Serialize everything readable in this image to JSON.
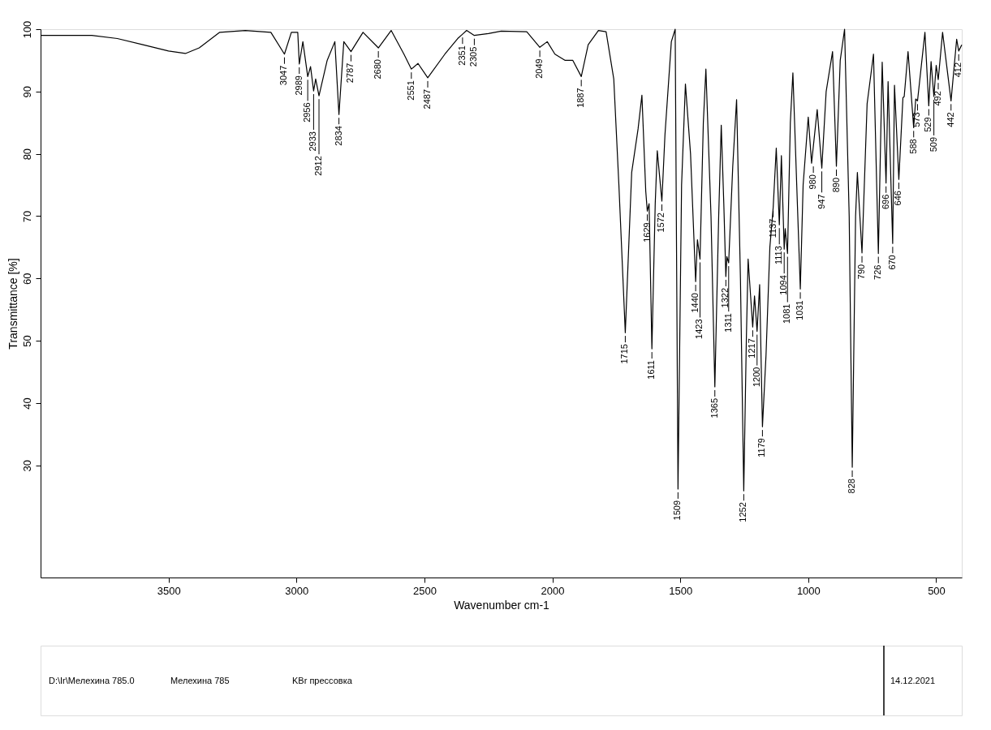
{
  "chart_data": {
    "type": "line",
    "xlabel": "Wavenumber cm-1",
    "ylabel": "Transmittance [%]",
    "xlim": [
      4000,
      400
    ],
    "xticks": [
      3500,
      3000,
      2500,
      2000,
      1500,
      1000,
      500
    ],
    "ylim": [
      12,
      100
    ],
    "yticks": [
      30,
      40,
      50,
      60,
      70,
      80,
      90,
      100
    ],
    "grid": false,
    "marker": "none",
    "line_style": "solid",
    "series": [
      {
        "color": "#000000",
        "x": [
          4000,
          3800,
          3700,
          3600,
          3500,
          3434,
          3380,
          3300,
          3200,
          3100,
          3047,
          3020,
          2995,
          2989,
          2975,
          2956,
          2945,
          2933,
          2925,
          2912,
          2880,
          2850,
          2834,
          2815,
          2787,
          2740,
          2680,
          2630,
          2580,
          2551,
          2525,
          2487,
          2420,
          2370,
          2351,
          2335,
          2305,
          2250,
          2200,
          2100,
          2049,
          2020,
          1990,
          1950,
          1920,
          1887,
          1860,
          1820,
          1790,
          1760,
          1740,
          1715,
          1690,
          1665,
          1650,
          1635,
          1629,
          1622,
          1611,
          1598,
          1590,
          1580,
          1572,
          1560,
          1535,
          1520,
          1509,
          1495,
          1480,
          1460,
          1440,
          1433,
          1423,
          1410,
          1400,
          1380,
          1365,
          1350,
          1340,
          1330,
          1322,
          1318,
          1311,
          1295,
          1280,
          1265,
          1252,
          1242,
          1235,
          1225,
          1217,
          1210,
          1200,
          1190,
          1179,
          1165,
          1150,
          1137,
          1125,
          1113,
          1105,
          1094,
          1090,
          1081,
          1070,
          1060,
          1045,
          1031,
          1020,
          1000,
          987,
          965,
          947,
          930,
          905,
          890,
          875,
          858,
          840,
          828,
          815,
          808,
          790,
          770,
          745,
          726,
          711,
          696,
          688,
          670,
          663,
          646,
          630,
          625,
          610,
          588,
          580,
          573,
          544,
          529,
          520,
          509,
          500,
          492,
          475,
          442,
          420,
          412,
          400
        ],
        "values": [
          99,
          99,
          98.5,
          97.5,
          96.5,
          96.1,
          97,
          99.5,
          99.8,
          99.5,
          96,
          99.5,
          99.5,
          94.4,
          98,
          92.4,
          94,
          90.1,
          92,
          89.3,
          95,
          98,
          86.3,
          98,
          96.4,
          99.5,
          97,
          99.8,
          96,
          93.6,
          94.5,
          92.2,
          96,
          98.5,
          99.2,
          99.8,
          99,
          99.3,
          99.7,
          99.6,
          97.1,
          98,
          96,
          95,
          95,
          92.4,
          97.5,
          99.8,
          99.6,
          92,
          75,
          51.3,
          77,
          84,
          89.4,
          74,
          70.8,
          72,
          48.7,
          72,
          80.5,
          76,
          72.4,
          83,
          98,
          100,
          26.2,
          75,
          91.2,
          80,
          59.5,
          66.2,
          63.1,
          85,
          93.6,
          70,
          42.6,
          70,
          84.6,
          72,
          60.3,
          63.5,
          62.5,
          78,
          88.7,
          60,
          25.9,
          50,
          63.1,
          57,
          52.2,
          57.2,
          51.5,
          59,
          36.2,
          47.7,
          65,
          71.4,
          80.9,
          68.6,
          79.7,
          64.7,
          68,
          64,
          85,
          93,
          75,
          58.3,
          75,
          85.9,
          78.5,
          87.1,
          77.7,
          90,
          96.4,
          78,
          95,
          100,
          70,
          29.7,
          70,
          77,
          64.1,
          88,
          96,
          64,
          94.7,
          75.3,
          91.6,
          65.6,
          91,
          75.9,
          89,
          89.2,
          96.4,
          84.2,
          88.8,
          88.5,
          99.5,
          87.7,
          94.8,
          89.2,
          94.2,
          91.9,
          99.5,
          88.5,
          98.4,
          96.5,
          97.5
        ]
      }
    ],
    "annotations": [
      {
        "text": "3047",
        "x": 3047,
        "y": 96
      },
      {
        "text": "2989",
        "x": 2989,
        "y": 94.4
      },
      {
        "text": "2956",
        "x": 2956,
        "y": 92.4
      },
      {
        "text": "2933",
        "x": 2933,
        "y": 90.1
      },
      {
        "text": "2912",
        "x": 2912,
        "y": 89.3
      },
      {
        "text": "2834",
        "x": 2834,
        "y": 86.3
      },
      {
        "text": "2787",
        "x": 2787,
        "y": 96.4
      },
      {
        "text": "2680",
        "x": 2680,
        "y": 97
      },
      {
        "text": "2551",
        "x": 2551,
        "y": 93.6
      },
      {
        "text": "2487",
        "x": 2487,
        "y": 92.2
      },
      {
        "text": "2351",
        "x": 2351,
        "y": 99.2
      },
      {
        "text": "2305",
        "x": 2305,
        "y": 99
      },
      {
        "text": "2049",
        "x": 2049,
        "y": 97.1
      },
      {
        "text": "1887",
        "x": 1887,
        "y": 92.4
      },
      {
        "text": "1715",
        "x": 1715,
        "y": 51.3
      },
      {
        "text": "1629",
        "x": 1629,
        "y": 70.8
      },
      {
        "text": "1611",
        "x": 1611,
        "y": 48.7
      },
      {
        "text": "1572",
        "x": 1572,
        "y": 72.4
      },
      {
        "text": "1509",
        "x": 1509,
        "y": 26.2
      },
      {
        "text": "1440",
        "x": 1440,
        "y": 59.5
      },
      {
        "text": "1423",
        "x": 1423,
        "y": 63.1
      },
      {
        "text": "1365",
        "x": 1365,
        "y": 42.6
      },
      {
        "text": "1322",
        "x": 1322,
        "y": 60.3
      },
      {
        "text": "1311",
        "x": 1311,
        "y": 62.5
      },
      {
        "text": "1252",
        "x": 1252,
        "y": 25.9
      },
      {
        "text": "1217",
        "x": 1217,
        "y": 52.2
      },
      {
        "text": "1200",
        "x": 1200,
        "y": 51.5
      },
      {
        "text": "1179",
        "x": 1179,
        "y": 36.2
      },
      {
        "text": "1137",
        "x": 1137,
        "y": 71.4
      },
      {
        "text": "1113",
        "x": 1113,
        "y": 68.6
      },
      {
        "text": "1094",
        "x": 1094,
        "y": 64.7
      },
      {
        "text": "1081",
        "x": 1081,
        "y": 64
      },
      {
        "text": "1031",
        "x": 1031,
        "y": 58.3
      },
      {
        "text": "980",
        "x": 980,
        "y": 78.5
      },
      {
        "text": "947",
        "x": 947,
        "y": 77.7
      },
      {
        "text": "890",
        "x": 890,
        "y": 78
      },
      {
        "text": "828",
        "x": 828,
        "y": 29.7
      },
      {
        "text": "790",
        "x": 790,
        "y": 64.1
      },
      {
        "text": "726",
        "x": 726,
        "y": 64
      },
      {
        "text": "696",
        "x": 696,
        "y": 75.3
      },
      {
        "text": "670",
        "x": 670,
        "y": 65.6
      },
      {
        "text": "646",
        "x": 646,
        "y": 75.9
      },
      {
        "text": "588",
        "x": 588,
        "y": 84.2
      },
      {
        "text": "573",
        "x": 573,
        "y": 88.5
      },
      {
        "text": "529",
        "x": 529,
        "y": 87.7
      },
      {
        "text": "509",
        "x": 509,
        "y": 89.2
      },
      {
        "text": "492",
        "x": 492,
        "y": 91.9
      },
      {
        "text": "442",
        "x": 442,
        "y": 88.5
      },
      {
        "text": "412",
        "x": 412,
        "y": 96.5
      },
      "D:\\Ir\\Мелехина 785.0",
      "Мелехина 785",
      "KBr прессовка",
      "14.12.2021"
    ]
  }
}
